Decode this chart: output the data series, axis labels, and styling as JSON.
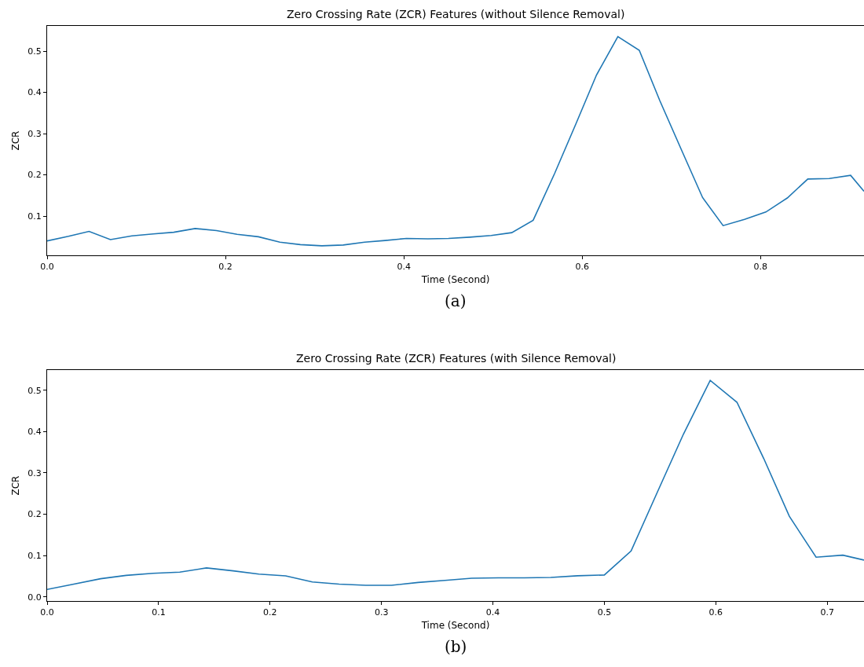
{
  "chart_data": [
    {
      "type": "line",
      "title": "Zero Crossing Rate (ZCR) Features (without Silence Removal)",
      "xlabel": "Time (Second)",
      "ylabel": "ZCR",
      "annotations": [
        "(a)"
      ],
      "color": "#1f77b4",
      "x": [
        0,
        0.024,
        0.047,
        0.071,
        0.095,
        0.119,
        0.142,
        0.166,
        0.19,
        0.213,
        0.237,
        0.261,
        0.284,
        0.308,
        0.332,
        0.356,
        0.379,
        0.403,
        0.427,
        0.45,
        0.474,
        0.498,
        0.521,
        0.545,
        0.569,
        0.593,
        0.616,
        0.64,
        0.664,
        0.687,
        0.711,
        0.735,
        0.758,
        0.782,
        0.806,
        0.83,
        0.853,
        0.877,
        0.901,
        0.916
      ],
      "values": [
        0.04,
        0.051,
        0.063,
        0.043,
        0.052,
        0.057,
        0.061,
        0.07,
        0.065,
        0.056,
        0.05,
        0.037,
        0.031,
        0.028,
        0.03,
        0.037,
        0.041,
        0.046,
        0.045,
        0.046,
        0.049,
        0.053,
        0.06,
        0.09,
        0.203,
        0.324,
        0.442,
        0.535,
        0.502,
        0.38,
        0.262,
        0.145,
        0.077,
        0.092,
        0.11,
        0.144,
        0.19,
        0.191,
        0.199,
        0.16
      ],
      "xlim": [
        0,
        0.916
      ],
      "ylim": [
        0.005,
        0.561
      ],
      "xticks": [
        {
          "value": 0,
          "label": "0.0"
        },
        0.2,
        0.4,
        0.6,
        0.8
      ],
      "yticks": [
        0.1,
        0.2,
        0.3,
        0.4,
        0.5
      ]
    },
    {
      "type": "line",
      "title": "Zero Crossing Rate (ZCR) Features (with Silence Removal)",
      "xlabel": "Time (Second)",
      "ylabel": "ZCR",
      "annotations": [
        "(b)"
      ],
      "color": "#1f77b4",
      "x": [
        0,
        0.024,
        0.048,
        0.071,
        0.095,
        0.119,
        0.143,
        0.167,
        0.19,
        0.214,
        0.238,
        0.262,
        0.286,
        0.309,
        0.333,
        0.357,
        0.381,
        0.405,
        0.428,
        0.452,
        0.476,
        0.5,
        0.524,
        0.547,
        0.571,
        0.595,
        0.619,
        0.643,
        0.666,
        0.69,
        0.714,
        0.733
      ],
      "values": [
        0.018,
        0.031,
        0.044,
        0.052,
        0.057,
        0.06,
        0.07,
        0.063,
        0.055,
        0.051,
        0.036,
        0.031,
        0.028,
        0.028,
        0.035,
        0.04,
        0.045,
        0.046,
        0.046,
        0.047,
        0.051,
        0.053,
        0.111,
        0.25,
        0.394,
        0.524,
        0.471,
        0.335,
        0.195,
        0.096,
        0.101,
        0.089
      ],
      "xlim": [
        0,
        0.733
      ],
      "ylim": [
        -0.01,
        0.549
      ],
      "xticks": [
        {
          "value": 0,
          "label": "0.0"
        },
        0.1,
        0.2,
        0.3,
        0.4,
        0.5,
        0.6,
        0.7
      ],
      "yticks": [
        {
          "value": 0,
          "label": "0.0"
        },
        0.1,
        0.2,
        0.3,
        0.4,
        0.5
      ]
    }
  ]
}
